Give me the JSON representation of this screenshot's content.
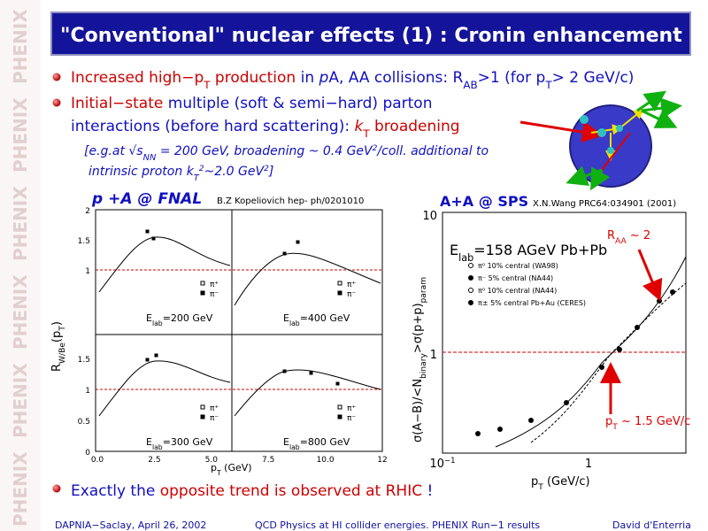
{
  "sidebar_watermark": "PHENIX",
  "title": "\"Conventional\" nuclear effects (1) : Cronin enhancement",
  "bullets": [
    [
      [
        {
          "text": "Increased high−p",
          "color": "#cc0000"
        },
        {
          "text": "T",
          "color": "#cc0000",
          "sub": true
        },
        {
          "text": " production ",
          "color": "#cc0000"
        },
        {
          "text": "in ",
          "color": "#1010c0"
        },
        {
          "text": "p",
          "color": "#1010c0",
          "italic": true
        },
        {
          "text": "A, AA collisions: R",
          "color": "#1010c0"
        },
        {
          "text": "AB",
          "color": "#1010c0",
          "sub": true
        },
        {
          "text": ">1 (for p",
          "color": "#1010c0"
        },
        {
          "text": "T",
          "color": "#1010c0",
          "sub": true
        },
        {
          "text": "> 2 GeV/c)",
          "color": "#1010c0"
        }
      ]
    ],
    [
      [
        {
          "text": "Initial−state",
          "color": "#cc0000"
        },
        {
          "text": " multiple (soft & semi−hard) parton",
          "color": "#1010c0"
        }
      ],
      [
        {
          "text": "interactions (before hard scattering): ",
          "color": "#1010c0"
        },
        {
          "text": "k",
          "color": "#cc0000",
          "italic": true
        },
        {
          "text": "T",
          "color": "#cc0000",
          "sub": true
        },
        {
          "text": " broadening",
          "color": "#cc0000"
        }
      ]
    ]
  ],
  "note": [
    [
      {
        "text": "[e.g.at √s"
      },
      {
        "text": "NN",
        "sub": true
      },
      {
        "text": " = 200 GeV, broadening ~ 0.4 GeV"
      },
      {
        "text": "2",
        "sup": true
      },
      {
        "text": "/coll. additional to"
      }
    ],
    [
      {
        "text": "intrinsic proton k"
      },
      {
        "text": "T",
        "sub": true
      },
      {
        "text": "2",
        "sup": true
      },
      {
        "text": "~2.0 GeV"
      },
      {
        "text": "2",
        "sup": true
      },
      {
        "text": "]"
      }
    ]
  ],
  "left_figure": {
    "heading": "p +A @ FNAL",
    "reference": "B.Z Kopeliovich hep- ph/0201010",
    "yticks_top": [
      "2",
      "1.5",
      "1"
    ],
    "yticks_bottom": [
      "1.5",
      "1",
      "0.5",
      "0"
    ],
    "xticks": [
      "0.0",
      "2.5",
      "5.0",
      "7.5",
      "10.0",
      "12"
    ],
    "ylabel": [
      {
        "text": "R"
      },
      {
        "text": "W/Be",
        "sub": true
      },
      {
        "text": "(p"
      },
      {
        "text": "T",
        "sub": true
      },
      {
        "text": ")"
      }
    ],
    "xlabel": [
      {
        "text": "p"
      },
      {
        "text": "T",
        "sub": true
      },
      {
        "text": "  (GeV)"
      }
    ],
    "panels": [
      {
        "energy": [
          {
            "text": "E"
          },
          {
            "text": "lab",
            "sub": true
          },
          {
            "text": "=200  GeV"
          }
        ],
        "legend": [
          "π⁺",
          "π⁻"
        ]
      },
      {
        "energy": [
          {
            "text": "E"
          },
          {
            "text": "lab",
            "sub": true
          },
          {
            "text": "=400  GeV"
          }
        ],
        "legend": [
          "π⁺",
          "π⁻"
        ]
      },
      {
        "energy": [
          {
            "text": "E"
          },
          {
            "text": "lab",
            "sub": true
          },
          {
            "text": "=300  GeV"
          }
        ],
        "legend": [
          "π⁺",
          "π⁻"
        ]
      },
      {
        "energy": [
          {
            "text": "E"
          },
          {
            "text": "lab",
            "sub": true
          },
          {
            "text": "=800  GeV"
          }
        ],
        "legend": [
          "π⁺",
          "π⁻"
        ]
      }
    ]
  },
  "right_figure": {
    "heading": "A+A @ SPS",
    "reference": "X.N.Wang PRC64:034901 (2001)",
    "energy": [
      {
        "text": "E"
      },
      {
        "text": "lab",
        "sub": true
      },
      {
        "text": "=158 AGeV Pb+Pb"
      }
    ],
    "legend": [
      "π⁰ 10% central (WA98)",
      "π⁻ 5% central (NA44)",
      "π⁰ 10% central (NA44)",
      "π± 5% central Pb+Au (CERES)"
    ],
    "yticks": [
      [
        {
          "text": "10"
        }
      ],
      [
        {
          "text": "1"
        }
      ]
    ],
    "xticks": [
      [
        {
          "text": "10"
        },
        {
          "text": "−1",
          "sup": true
        }
      ],
      [
        {
          "text": "1"
        }
      ]
    ],
    "ylabel": [
      {
        "text": "σ(A−B)/<N"
      },
      {
        "text": "binary",
        "sub": true
      },
      {
        "text": ">σ(p+p)"
      },
      {
        "text": "param",
        "sub": true
      }
    ],
    "xlabel": [
      {
        "text": "p"
      },
      {
        "text": "T",
        "sub": true
      },
      {
        "text": " (GeV/c)"
      }
    ],
    "annotation_raa": [
      {
        "text": "R"
      },
      {
        "text": "AA",
        "sub": true
      },
      {
        "text": " ~ 2"
      }
    ],
    "annotation_pt": [
      {
        "text": "p"
      },
      {
        "text": "T",
        "sub": true
      },
      {
        "text": " ~ 1.5 GeV/c"
      }
    ]
  },
  "conclusion": [
    [
      {
        "text": "Exactly the ",
        "color": "#1010c0"
      },
      {
        "text": "opposite trend is observed at RHIC",
        "color": "#cc0000"
      },
      {
        "text": " !",
        "color": "#1010c0"
      }
    ]
  ],
  "footer": [
    "DAPNIA−Saclay, April 26, 2002",
    "QCD Physics at HI collider energies. PHENIX Run−1 results",
    "David d'Enterria"
  ]
}
